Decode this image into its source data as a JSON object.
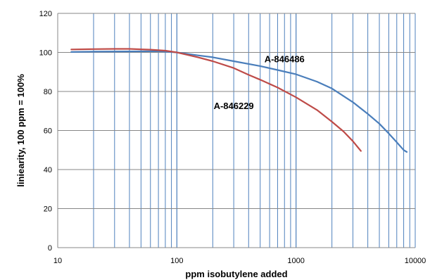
{
  "chart_data": {
    "type": "line",
    "title": "",
    "xlabel": "ppm isobutylene added",
    "ylabel": "liniearity, 100 ppm = 100%",
    "x_scale": "log",
    "xlim": [
      10,
      10000
    ],
    "ylim": [
      0,
      120
    ],
    "x_ticks": [
      10,
      100,
      1000,
      10000
    ],
    "x_tick_labels": [
      "10",
      "100",
      "1000",
      "10000"
    ],
    "y_ticks": [
      0,
      20,
      40,
      60,
      80,
      100,
      120
    ],
    "y_tick_labels": [
      "0",
      "20",
      "40",
      "60",
      "80",
      "100",
      "120"
    ],
    "grid": "vertical log-minor gridlines, horizontal major gridlines",
    "legend": "none",
    "series": [
      {
        "name": "A-846486",
        "color": "#4a7ebb",
        "points": [
          [
            13,
            100.2
          ],
          [
            20,
            100.4
          ],
          [
            40,
            100.5
          ],
          [
            70,
            100.6
          ],
          [
            100,
            100.0
          ],
          [
            150,
            98.5
          ],
          [
            200,
            97.5
          ],
          [
            300,
            95.5
          ],
          [
            500,
            93.0
          ],
          [
            700,
            91.0
          ],
          [
            1000,
            88.8
          ],
          [
            1500,
            85.0
          ],
          [
            2000,
            81.5
          ],
          [
            3000,
            74.5
          ],
          [
            4000,
            68.5
          ],
          [
            5000,
            63.5
          ],
          [
            6000,
            58.5
          ],
          [
            7000,
            54.0
          ],
          [
            8000,
            50.0
          ],
          [
            8500,
            49.0
          ]
        ]
      },
      {
        "name": "A-846229",
        "color": "#be4b48",
        "points": [
          [
            13,
            101.5
          ],
          [
            20,
            101.7
          ],
          [
            30,
            101.8
          ],
          [
            40,
            101.8
          ],
          [
            60,
            101.4
          ],
          [
            80,
            100.9
          ],
          [
            100,
            100.0
          ],
          [
            150,
            97.5
          ],
          [
            200,
            95.5
          ],
          [
            300,
            92.0
          ],
          [
            400,
            88.5
          ],
          [
            500,
            86.0
          ],
          [
            700,
            82.0
          ],
          [
            1000,
            77.0
          ],
          [
            1500,
            70.5
          ],
          [
            2000,
            64.5
          ],
          [
            2500,
            59.5
          ],
          [
            3000,
            54.5
          ],
          [
            3500,
            49.5
          ]
        ]
      }
    ],
    "annotations": [
      {
        "text": "A-846486",
        "x": 800,
        "y": 95,
        "series": "A-846486"
      },
      {
        "text": "A-846229",
        "x": 300,
        "y": 71,
        "series": "A-846229"
      }
    ]
  }
}
